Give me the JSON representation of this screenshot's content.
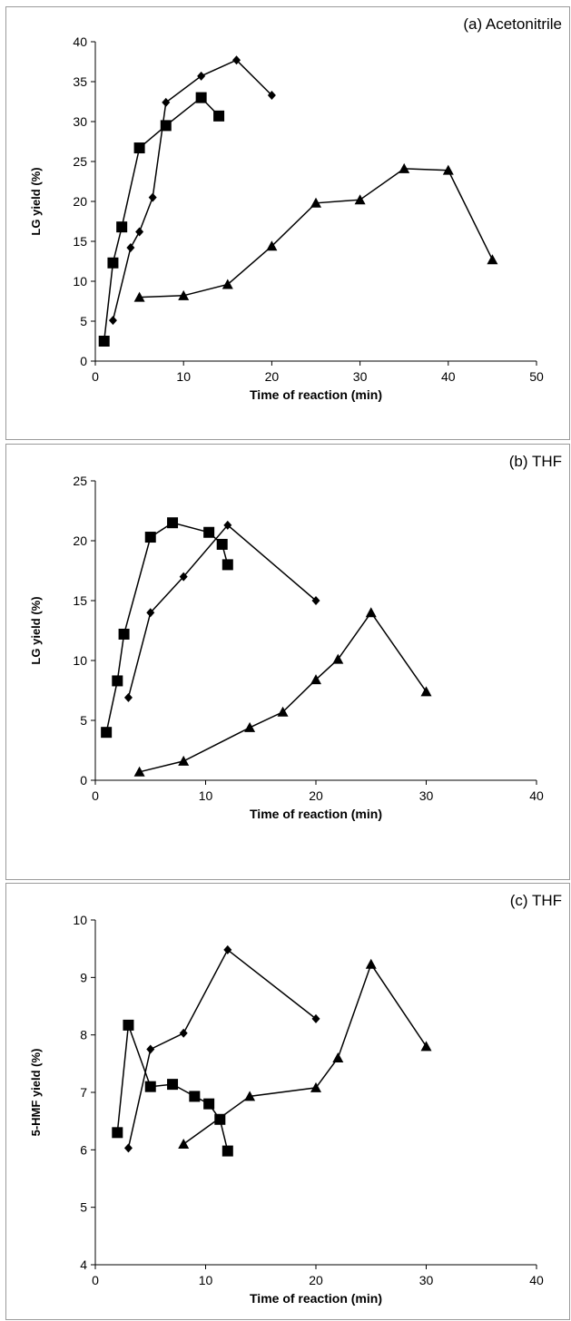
{
  "chart_data": [
    {
      "type": "line",
      "title": "(a) Acetonitrile",
      "xlabel": "Time of reaction (min)",
      "ylabel": "LG yield (%)",
      "xlim": [
        0,
        50
      ],
      "ylim": [
        0,
        40
      ],
      "xticks": [
        "0",
        "10",
        "20",
        "30",
        "40",
        "50"
      ],
      "yticks": [
        "0",
        "5",
        "10",
        "15",
        "20",
        "25",
        "30",
        "35",
        "40"
      ],
      "grid": false,
      "series": [
        {
          "marker": "square",
          "points": [
            [
              1,
              2.5
            ],
            [
              2,
              12.3
            ],
            [
              3,
              16.8
            ],
            [
              5,
              26.7
            ],
            [
              8,
              29.5
            ],
            [
              12,
              33
            ],
            [
              14,
              30.7
            ]
          ]
        },
        {
          "marker": "diamond",
          "points": [
            [
              2,
              5.1
            ],
            [
              4,
              14.2
            ],
            [
              5,
              16.2
            ],
            [
              6.5,
              20.5
            ],
            [
              8,
              32.4
            ],
            [
              12,
              35.7
            ],
            [
              16,
              37.7
            ],
            [
              20,
              33.3
            ]
          ]
        },
        {
          "marker": "triangle",
          "points": [
            [
              5,
              8
            ],
            [
              10,
              8.2
            ],
            [
              15,
              9.6
            ],
            [
              20,
              14.4
            ],
            [
              25,
              19.8
            ],
            [
              30,
              20.2
            ],
            [
              35,
              24.1
            ],
            [
              40,
              23.9
            ],
            [
              45,
              12.7
            ]
          ]
        }
      ]
    },
    {
      "type": "line",
      "title": "(b) THF",
      "xlabel": "Time of reaction (min)",
      "ylabel": "LG yield (%)",
      "xlim": [
        0,
        40
      ],
      "ylim": [
        0,
        25
      ],
      "xticks": [
        "0",
        "10",
        "20",
        "30",
        "40"
      ],
      "yticks": [
        "0",
        "5",
        "10",
        "15",
        "20",
        "25"
      ],
      "grid": false,
      "series": [
        {
          "marker": "square",
          "points": [
            [
              1,
              4
            ],
            [
              2,
              8.3
            ],
            [
              2.6,
              12.2
            ],
            [
              5,
              20.3
            ],
            [
              7,
              21.5
            ],
            [
              10.3,
              20.7
            ],
            [
              11.5,
              19.7
            ],
            [
              12,
              18
            ]
          ]
        },
        {
          "marker": "diamond",
          "points": [
            [
              3,
              6.9
            ],
            [
              5,
              14
            ],
            [
              8,
              17
            ],
            [
              12,
              21.3
            ],
            [
              20,
              15
            ]
          ]
        },
        {
          "marker": "triangle",
          "points": [
            [
              4,
              0.7
            ],
            [
              8,
              1.6
            ],
            [
              14,
              4.4
            ],
            [
              17,
              5.7
            ],
            [
              20,
              8.4
            ],
            [
              22,
              10.1
            ],
            [
              25,
              14
            ],
            [
              30,
              7.4
            ]
          ]
        }
      ]
    },
    {
      "type": "line",
      "title": "(c) THF",
      "xlabel": "Time of reaction (min)",
      "ylabel": "5-HMF yield (%)",
      "xlim": [
        0,
        40
      ],
      "ylim": [
        4,
        10
      ],
      "xticks": [
        "0",
        "10",
        "20",
        "30",
        "40"
      ],
      "yticks": [
        "4",
        "5",
        "6",
        "7",
        "8",
        "9",
        "10"
      ],
      "grid": false,
      "series": [
        {
          "marker": "square",
          "points": [
            [
              2,
              6.3
            ],
            [
              3,
              8.17
            ],
            [
              5,
              7.1
            ],
            [
              7,
              7.14
            ],
            [
              9,
              6.93
            ],
            [
              10.3,
              6.8
            ],
            [
              11.3,
              6.53
            ],
            [
              12,
              5.98
            ]
          ]
        },
        {
          "marker": "diamond",
          "points": [
            [
              3,
              6.03
            ],
            [
              5,
              7.75
            ],
            [
              8,
              8.03
            ],
            [
              12,
              9.48
            ],
            [
              20,
              8.28
            ]
          ]
        },
        {
          "marker": "triangle",
          "points": [
            [
              8,
              6.1
            ],
            [
              14,
              6.93
            ],
            [
              20,
              7.08
            ],
            [
              22,
              7.6
            ],
            [
              25,
              9.23
            ],
            [
              30,
              7.8
            ]
          ]
        }
      ]
    }
  ]
}
